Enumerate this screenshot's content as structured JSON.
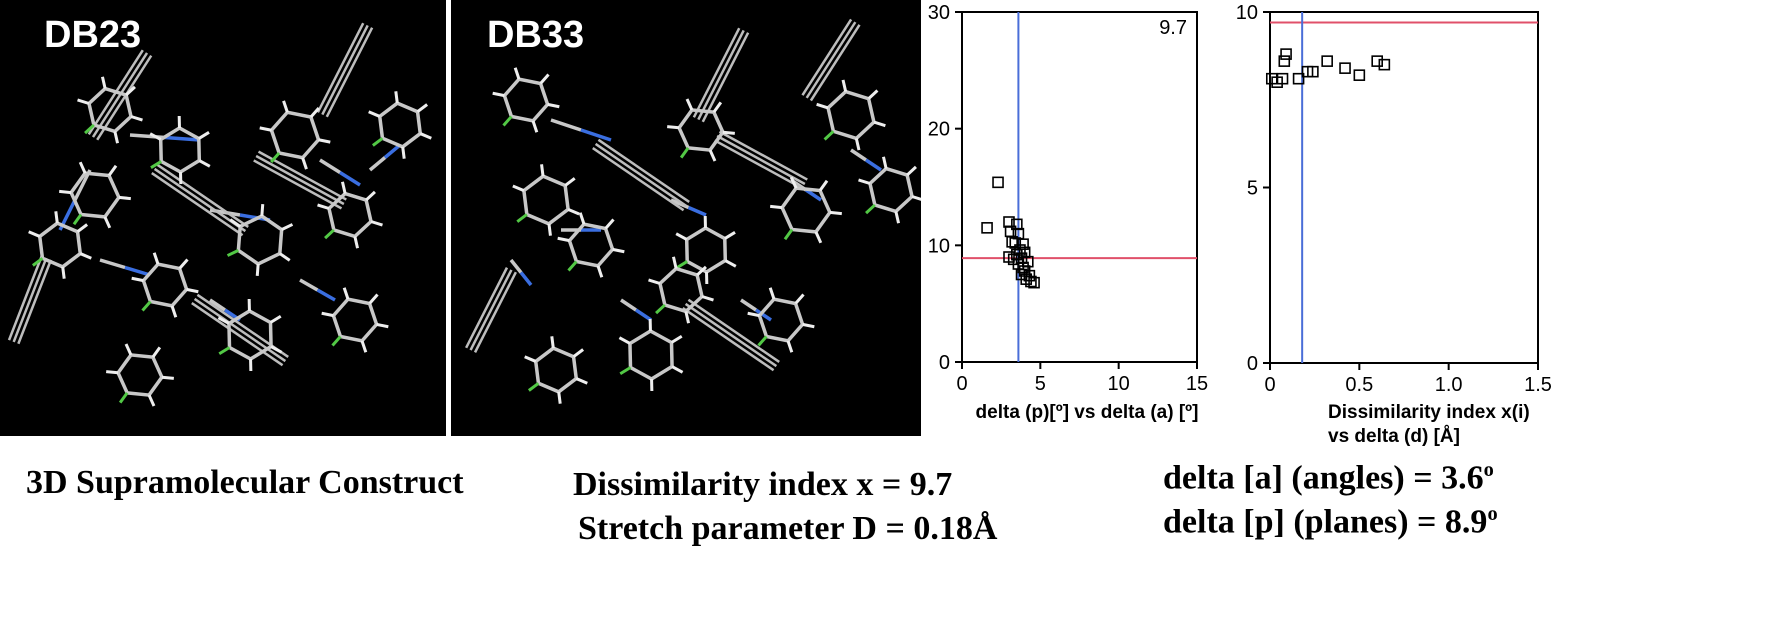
{
  "panels": [
    {
      "label": "DB23"
    },
    {
      "label": "DB33"
    }
  ],
  "chart_data": [
    {
      "type": "scatter",
      "xlabel": "delta (p)[º] vs delta (a) [º]",
      "xlim": [
        0,
        15
      ],
      "ylim": [
        0,
        30
      ],
      "xticks": [
        "0",
        "5",
        "10",
        "15"
      ],
      "yticks": [
        "0",
        "10",
        "20",
        "30"
      ],
      "annotation": "9.7",
      "hline": 8.9,
      "vline": 3.6,
      "hline_color": "#e0506a",
      "vline_color": "#4a6ed8",
      "points": [
        [
          1.6,
          11.5
        ],
        [
          2.3,
          15.4
        ],
        [
          3.0,
          12.0
        ],
        [
          3.1,
          11.2
        ],
        [
          3.2,
          10.3
        ],
        [
          3.0,
          9.0
        ],
        [
          3.3,
          8.8
        ],
        [
          3.5,
          11.8
        ],
        [
          3.6,
          11.0
        ],
        [
          3.4,
          10.2
        ],
        [
          3.7,
          9.6
        ],
        [
          3.5,
          9.2
        ],
        [
          3.8,
          8.9
        ],
        [
          3.6,
          8.4
        ],
        [
          3.9,
          8.1
        ],
        [
          4.0,
          7.8
        ],
        [
          3.8,
          7.5
        ],
        [
          4.2,
          8.6
        ],
        [
          4.3,
          7.4
        ],
        [
          4.1,
          7.1
        ],
        [
          4.4,
          6.9
        ],
        [
          4.6,
          6.8
        ],
        [
          4.0,
          9.4
        ],
        [
          3.9,
          10.1
        ]
      ]
    },
    {
      "type": "scatter",
      "xlabel": "Dissimilarity index x(i) vs delta (d) [Å]",
      "xlim": [
        0,
        1.5
      ],
      "ylim": [
        0,
        10
      ],
      "xticks": [
        "0",
        "0.5",
        "1.0",
        "1.5"
      ],
      "yticks": [
        "0",
        "5",
        "10"
      ],
      "hline": 9.7,
      "vline": 0.18,
      "hline_color": "#e0506a",
      "vline_color": "#4a6ed8",
      "points": [
        [
          0.01,
          8.1
        ],
        [
          0.04,
          8.0
        ],
        [
          0.07,
          8.1
        ],
        [
          0.08,
          8.6
        ],
        [
          0.09,
          8.8
        ],
        [
          0.16,
          8.1
        ],
        [
          0.21,
          8.3
        ],
        [
          0.24,
          8.3
        ],
        [
          0.32,
          8.6
        ],
        [
          0.42,
          8.4
        ],
        [
          0.5,
          8.2
        ],
        [
          0.6,
          8.6
        ],
        [
          0.64,
          8.5
        ]
      ]
    }
  ],
  "captions": {
    "construct": "3D Supramolecular Construct",
    "dissimilarity": "Dissimilarity index x = 9.7",
    "stretch": "Stretch parameter D = 0.18Å",
    "angles_text": "delta [a] (angles) = 3.6",
    "angles_unit": "o",
    "planes_text": "delta [p] (planes) =  8.9",
    "planes_unit": "o"
  }
}
